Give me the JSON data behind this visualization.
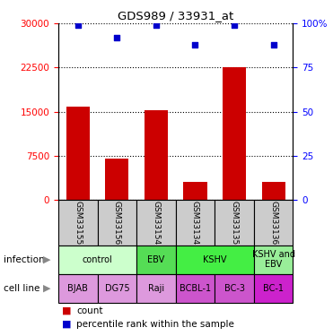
{
  "title": "GDS989 / 33931_at",
  "samples": [
    "GSM33155",
    "GSM33156",
    "GSM33154",
    "GSM33134",
    "GSM33135",
    "GSM33136"
  ],
  "counts": [
    15800,
    7000,
    15200,
    3000,
    22500,
    3000
  ],
  "percentiles": [
    99,
    92,
    99,
    88,
    99,
    88
  ],
  "ylim_left": [
    0,
    30000
  ],
  "ylim_right": [
    0,
    100
  ],
  "yticks_left": [
    0,
    7500,
    15000,
    22500,
    30000
  ],
  "yticks_right": [
    0,
    25,
    50,
    75,
    100
  ],
  "ytick_labels_left": [
    "0",
    "7500",
    "15000",
    "22500",
    "30000"
  ],
  "ytick_labels_right": [
    "0",
    "25",
    "50",
    "75",
    "100%"
  ],
  "bar_color": "#cc0000",
  "scatter_color": "#0000cc",
  "infection_groups": [
    {
      "label": "control",
      "span": [
        0,
        2
      ],
      "color": "#ccffcc"
    },
    {
      "label": "EBV",
      "span": [
        2,
        3
      ],
      "color": "#55dd55"
    },
    {
      "label": "KSHV",
      "span": [
        3,
        5
      ],
      "color": "#44ee44"
    },
    {
      "label": "KSHV and\nEBV",
      "span": [
        5,
        6
      ],
      "color": "#99ee99"
    }
  ],
  "cell_lines": [
    {
      "label": "BJAB",
      "color": "#dd99dd"
    },
    {
      "label": "DG75",
      "color": "#dd99dd"
    },
    {
      "label": "Raji",
      "color": "#dd99dd"
    },
    {
      "label": "BCBL-1",
      "color": "#cc55cc"
    },
    {
      "label": "BC-3",
      "color": "#cc55cc"
    },
    {
      "label": "BC-1",
      "color": "#cc22cc"
    }
  ],
  "gsm_bg_color": "#cccccc",
  "bg_color": "#ffffff"
}
